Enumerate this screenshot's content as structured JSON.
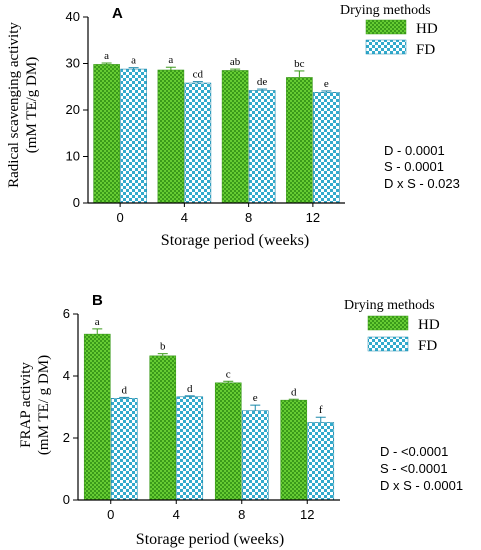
{
  "colors": {
    "hd_fill": "#66cc33",
    "hd_pattern": "#3a9a1a",
    "fd_fill": "#33aacc",
    "fd_pattern": "#ffffff",
    "axis": "#000000"
  },
  "chart_data": [
    {
      "panel_label": "A",
      "type": "bar",
      "xlabel": "Storage period (weeks)",
      "ylabel_line1": "Radical scavenging activity",
      "ylabel_line2": "(mM TE/g DM)",
      "categories": [
        "0",
        "4",
        "8",
        "12"
      ],
      "ylim": [
        0,
        40
      ],
      "yticks": [
        "0",
        "10",
        "20",
        "30",
        "40"
      ],
      "legend_title": "Drying methods",
      "legend_position": "top-right",
      "series": [
        {
          "name": "HD",
          "values": [
            29.8,
            28.6,
            28.5,
            27.0
          ],
          "errors": [
            0.3,
            0.6,
            0.3,
            1.4
          ],
          "letters": [
            "a",
            "a",
            "ab",
            "bc"
          ]
        },
        {
          "name": "FD",
          "values": [
            28.8,
            25.8,
            24.2,
            23.8
          ],
          "errors": [
            0.3,
            0.3,
            0.3,
            0.3
          ],
          "letters": [
            "a",
            "cd",
            "de",
            "e"
          ]
        }
      ],
      "stats": [
        "D - 0.0001",
        "S - 0.0001",
        "D x S - 0.023"
      ]
    },
    {
      "panel_label": "B",
      "type": "bar",
      "xlabel": "Storage period (weeks)",
      "ylabel_line1": "FRAP activity",
      "ylabel_line2": "(mM TE/ g DM)",
      "categories": [
        "0",
        "4",
        "8",
        "12"
      ],
      "ylim": [
        0,
        6
      ],
      "yticks": [
        "0",
        "2",
        "4",
        "6"
      ],
      "legend_title": "Drying methods",
      "legend_position": "top-right",
      "series": [
        {
          "name": "HD",
          "values": [
            5.35,
            4.65,
            3.78,
            3.22
          ],
          "errors": [
            0.17,
            0.07,
            0.05,
            0.03
          ],
          "letters": [
            "a",
            "b",
            "c",
            "d"
          ]
        },
        {
          "name": "FD",
          "values": [
            3.28,
            3.33,
            2.88,
            2.5
          ],
          "errors": [
            0.03,
            0.03,
            0.18,
            0.17
          ],
          "letters": [
            "d",
            "d",
            "e",
            "f"
          ]
        }
      ],
      "stats": [
        "D - <0.0001",
        "S - <0.0001",
        "D x S - 0.0001"
      ]
    }
  ]
}
